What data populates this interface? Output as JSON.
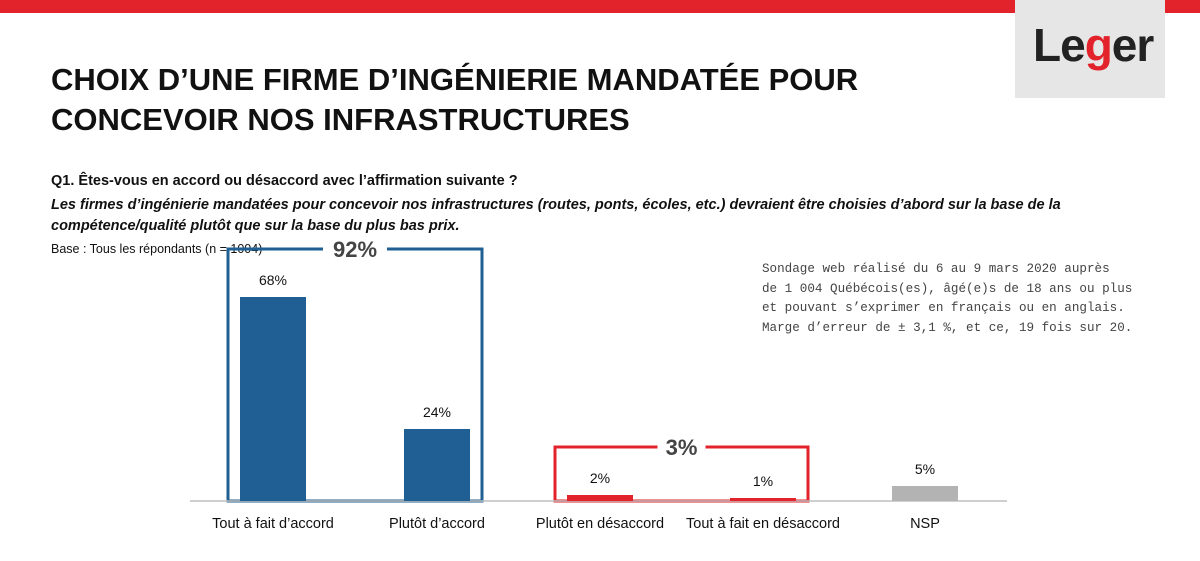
{
  "header": {
    "logo_prefix": "Le",
    "logo_accent": "g",
    "logo_suffix": "er",
    "title_line1": "CHOIX D’UNE FIRME D’INGÉNIERIE MANDATÉE POUR",
    "title_line2": "CONCEVOIR NOS INFRASTRUCTURES"
  },
  "question": "Q1. Êtes-vous en accord ou désaccord avec l’affirmation suivante ?",
  "statement_line1": "Les firmes d’ingénierie mandatées pour concevoir nos infrastructures (routes, ponts, écoles, etc.) devraient être choisies d’abord sur la base de la",
  "statement_line2": "compétence/qualité plutôt que sur la base du plus bas prix.",
  "base": "Base : Tous les répondants (n = 1004)",
  "methodology": [
    "Sondage web réalisé du 6 au 9 mars 2020 auprès",
    "de 1 004 Québécois(es), âgé(e)s de 18 ans ou plus",
    "et pouvant s’exprimer en français ou en anglais.",
    "Marge d’erreur de ± 3,1 %, et ce, 19 fois sur 20."
  ],
  "colors": {
    "accent_red": "#e3232b",
    "agree_blue": "#1f5f93",
    "disagree_red": "#e3232b",
    "nsp_gray": "#b3b3b3",
    "logo_bg": "#e6e6e6"
  },
  "chart_data": {
    "type": "bar",
    "categories": [
      "Tout à fait d’accord",
      "Plutôt d’accord",
      "Plutôt en désaccord",
      "Tout à fait en désaccord",
      "NSP"
    ],
    "values": [
      68,
      24,
      2,
      1,
      5
    ],
    "value_labels": [
      "68%",
      "24%",
      "2%",
      "1%",
      "5%"
    ],
    "bar_colors": [
      "#1f5f93",
      "#1f5f93",
      "#e3232b",
      "#e3232b",
      "#b3b3b3"
    ],
    "groups": [
      {
        "label": "92%",
        "members": [
          0,
          1
        ],
        "color": "#1f5f93"
      },
      {
        "label": "3%",
        "members": [
          2,
          3
        ],
        "color": "#e3232b"
      }
    ],
    "ylim": [
      0,
      70
    ],
    "grid": false,
    "legend": "none"
  }
}
